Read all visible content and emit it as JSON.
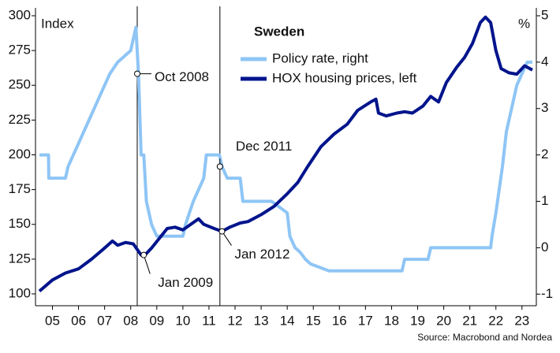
{
  "chart_data": {
    "type": "line",
    "title": "Sweden",
    "y_label": "Index",
    "y2_label": "%",
    "source": "Source: Macrobond and Nordea",
    "xlim": [
      2004.85,
      2024.05
    ],
    "xticks": [
      {
        "value": 2005.5,
        "label": "05"
      },
      {
        "value": 2006.5,
        "label": "06"
      },
      {
        "value": 2007.5,
        "label": "07"
      },
      {
        "value": 2008.5,
        "label": "08"
      },
      {
        "value": 2009.5,
        "label": "09"
      },
      {
        "value": 2010.5,
        "label": "10"
      },
      {
        "value": 2011.5,
        "label": "11"
      },
      {
        "value": 2012.5,
        "label": "12"
      },
      {
        "value": 2013.5,
        "label": "13"
      },
      {
        "value": 2014.5,
        "label": "14"
      },
      {
        "value": 2015.5,
        "label": "15"
      },
      {
        "value": 2016.5,
        "label": "16"
      },
      {
        "value": 2017.5,
        "label": "17"
      },
      {
        "value": 2018.5,
        "label": "18"
      },
      {
        "value": 2019.5,
        "label": "19"
      },
      {
        "value": 2020.5,
        "label": "20"
      },
      {
        "value": 2021.5,
        "label": "21"
      },
      {
        "value": 2022.5,
        "label": "22"
      },
      {
        "value": 2023.5,
        "label": "23"
      }
    ],
    "ylim": [
      91.5,
      300
    ],
    "yticks": [
      100,
      125,
      150,
      175,
      200,
      225,
      250,
      275,
      300
    ],
    "y2lim": [
      -1.25,
      5
    ],
    "y2ticks": [
      -1,
      0,
      1,
      2,
      3,
      4,
      5
    ],
    "grid": false,
    "series": [
      {
        "name": "Policy rate, right",
        "color": "#8ec5f5",
        "axis": "y2",
        "x": [
          2005.0,
          2005.35,
          2005.36,
          2006.0,
          2006.1,
          2006.3,
          2006.5,
          2006.7,
          2006.9,
          2007.1,
          2007.3,
          2007.5,
          2007.7,
          2008.0,
          2008.5,
          2008.7,
          2008.8,
          2008.9,
          2009.0,
          2009.1,
          2009.3,
          2009.5,
          2010.5,
          2010.6,
          2010.75,
          2010.9,
          2011.1,
          2011.3,
          2011.4,
          2011.9,
          2012.0,
          2012.2,
          2012.7,
          2012.8,
          2013.9,
          2014.5,
          2014.6,
          2014.8,
          2015.0,
          2015.2,
          2015.4,
          2016.1,
          2018.9,
          2019.0,
          2019.9,
          2020.0,
          2022.3,
          2022.35,
          2022.5,
          2022.75,
          2022.9,
          2023.1,
          2023.3,
          2023.5,
          2023.7,
          2023.9
        ],
        "values": [
          2.0,
          2.0,
          1.5,
          1.5,
          1.75,
          2.0,
          2.25,
          2.5,
          2.75,
          3.0,
          3.25,
          3.5,
          3.75,
          4.0,
          4.25,
          4.75,
          3.75,
          2.0,
          2.0,
          1.0,
          0.5,
          0.25,
          0.25,
          0.5,
          0.75,
          1.0,
          1.25,
          1.5,
          2.0,
          2.0,
          1.75,
          1.5,
          1.5,
          1.0,
          1.0,
          0.75,
          0.25,
          0.0,
          -0.1,
          -0.25,
          -0.35,
          -0.5,
          -0.5,
          -0.25,
          -0.25,
          0.0,
          0.0,
          0.25,
          0.75,
          1.75,
          2.5,
          3.0,
          3.5,
          3.75,
          4.0,
          4.0
        ]
      },
      {
        "name": "HOX housing prices, left",
        "color": "#00148c",
        "axis": "y",
        "x": [
          2005.0,
          2005.5,
          2006.0,
          2006.5,
          2007.0,
          2007.5,
          2007.8,
          2008.0,
          2008.3,
          2008.6,
          2008.9,
          2009.0,
          2009.3,
          2009.6,
          2009.9,
          2010.2,
          2010.5,
          2010.8,
          2011.1,
          2011.3,
          2011.7,
          2012.0,
          2012.3,
          2012.7,
          2013.0,
          2013.5,
          2014.0,
          2014.5,
          2014.9,
          2015.3,
          2015.8,
          2016.3,
          2016.8,
          2017.2,
          2017.7,
          2017.9,
          2018.0,
          2018.3,
          2018.7,
          2019.0,
          2019.3,
          2019.7,
          2020.0,
          2020.3,
          2020.6,
          2021.0,
          2021.3,
          2021.6,
          2021.9,
          2022.1,
          2022.3,
          2022.5,
          2022.7,
          2023.0,
          2023.3,
          2023.6,
          2023.9
        ],
        "values": [
          102,
          110,
          115,
          118,
          125,
          133,
          138,
          135,
          137,
          136,
          128,
          127,
          133,
          140,
          147,
          148,
          146,
          150,
          154,
          150,
          147,
          145,
          148,
          151,
          152,
          157,
          163,
          172,
          180,
          192,
          206,
          215,
          222,
          232,
          238,
          240,
          230,
          228,
          230,
          231,
          230,
          235,
          242,
          238,
          252,
          263,
          270,
          280,
          295,
          299,
          295,
          275,
          262,
          259,
          258,
          264,
          261
        ]
      }
    ],
    "annotations": [
      {
        "text": "Oct 2008",
        "x": 2008.75,
        "y": 3.75,
        "axis": "y2"
      },
      {
        "text": "Jan 2009",
        "x": 2009.0,
        "y": 128,
        "axis": "y"
      },
      {
        "text": "Dec 2011",
        "x": 2011.92,
        "y": 1.75,
        "axis": "y2"
      },
      {
        "text": "Jan 2012",
        "x": 2012.0,
        "y": 145,
        "axis": "y"
      }
    ]
  }
}
